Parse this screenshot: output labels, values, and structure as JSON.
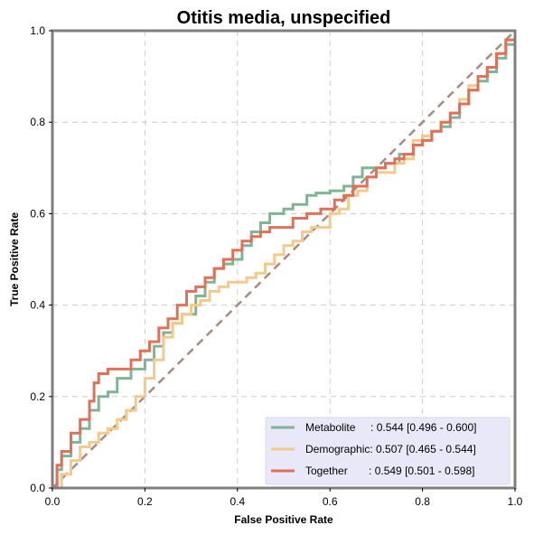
{
  "chart_data": {
    "type": "line",
    "title": "Otitis media, unspecified",
    "xlabel": "False Positive Rate",
    "ylabel": "True Positive Rate",
    "xlim": [
      0,
      1
    ],
    "ylim": [
      0,
      1
    ],
    "xticks": [
      "0.0",
      "0.2",
      "0.4",
      "0.6",
      "0.8",
      "1.0"
    ],
    "yticks": [
      "0.0",
      "0.2",
      "0.4",
      "0.6",
      "0.8",
      "1.0"
    ],
    "grid": true,
    "legend_position": "bottom-right",
    "colors": {
      "axes": "#7f7f7f",
      "grid": "#cccccc",
      "legend_bg": "#e8e8f8",
      "chance": "#a88a80"
    },
    "chance_line": {
      "x": [
        0,
        1
      ],
      "y": [
        0,
        1
      ]
    },
    "series": [
      {
        "name": "Metabolite",
        "legend": "Metabolite     : 0.544 [0.496 - 0.600]",
        "color": "#7fb595",
        "x": [
          0,
          0.01,
          0.02,
          0.04,
          0.06,
          0.08,
          0.1,
          0.12,
          0.14,
          0.17,
          0.2,
          0.22,
          0.24,
          0.26,
          0.28,
          0.31,
          0.33,
          0.35,
          0.37,
          0.39,
          0.41,
          0.43,
          0.45,
          0.47,
          0.5,
          0.52,
          0.55,
          0.57,
          0.6,
          0.63,
          0.65,
          0.67,
          0.69,
          0.72,
          0.75,
          0.78,
          0.8,
          0.82,
          0.84,
          0.86,
          0.88,
          0.9,
          0.92,
          0.94,
          0.96,
          0.98,
          1.0
        ],
        "y": [
          0,
          0.04,
          0.07,
          0.1,
          0.13,
          0.17,
          0.2,
          0.21,
          0.24,
          0.26,
          0.28,
          0.31,
          0.34,
          0.36,
          0.38,
          0.42,
          0.45,
          0.48,
          0.49,
          0.5,
          0.53,
          0.56,
          0.58,
          0.6,
          0.61,
          0.62,
          0.64,
          0.645,
          0.65,
          0.66,
          0.68,
          0.7,
          0.7,
          0.71,
          0.73,
          0.75,
          0.77,
          0.78,
          0.79,
          0.81,
          0.84,
          0.87,
          0.89,
          0.91,
          0.94,
          0.97,
          1.0
        ]
      },
      {
        "name": "Demographic",
        "legend": "Demographic: 0.507 [0.465 - 0.544]",
        "color": "#f2ca8a",
        "x": [
          0,
          0.02,
          0.04,
          0.06,
          0.08,
          0.1,
          0.12,
          0.14,
          0.16,
          0.18,
          0.2,
          0.22,
          0.24,
          0.26,
          0.28,
          0.3,
          0.32,
          0.34,
          0.36,
          0.38,
          0.4,
          0.42,
          0.44,
          0.46,
          0.48,
          0.5,
          0.52,
          0.54,
          0.56,
          0.58,
          0.6,
          0.62,
          0.64,
          0.66,
          0.68,
          0.7,
          0.72,
          0.74,
          0.76,
          0.78,
          0.8,
          0.82,
          0.84,
          0.86,
          0.88,
          0.9,
          0.92,
          0.94,
          0.96,
          0.98,
          1.0
        ],
        "y": [
          0,
          0.03,
          0.06,
          0.09,
          0.1,
          0.12,
          0.13,
          0.15,
          0.17,
          0.2,
          0.24,
          0.28,
          0.33,
          0.36,
          0.38,
          0.4,
          0.41,
          0.43,
          0.44,
          0.45,
          0.45,
          0.46,
          0.47,
          0.49,
          0.51,
          0.53,
          0.54,
          0.56,
          0.57,
          0.57,
          0.6,
          0.61,
          0.64,
          0.65,
          0.68,
          0.69,
          0.69,
          0.71,
          0.72,
          0.76,
          0.77,
          0.78,
          0.8,
          0.82,
          0.85,
          0.88,
          0.9,
          0.92,
          0.95,
          0.98,
          1.0
        ]
      },
      {
        "name": "Together",
        "legend": "Together       : 0.549 [0.501 - 0.598]",
        "color": "#e07058",
        "x": [
          0,
          0.01,
          0.02,
          0.04,
          0.06,
          0.08,
          0.09,
          0.1,
          0.12,
          0.14,
          0.17,
          0.19,
          0.21,
          0.23,
          0.25,
          0.27,
          0.29,
          0.31,
          0.33,
          0.35,
          0.37,
          0.39,
          0.41,
          0.43,
          0.45,
          0.47,
          0.49,
          0.52,
          0.55,
          0.58,
          0.61,
          0.63,
          0.65,
          0.68,
          0.7,
          0.72,
          0.74,
          0.76,
          0.78,
          0.8,
          0.82,
          0.84,
          0.86,
          0.88,
          0.9,
          0.92,
          0.94,
          0.96,
          0.98,
          1.0
        ],
        "y": [
          0,
          0.05,
          0.08,
          0.12,
          0.15,
          0.19,
          0.23,
          0.25,
          0.26,
          0.26,
          0.28,
          0.3,
          0.32,
          0.35,
          0.37,
          0.4,
          0.43,
          0.44,
          0.46,
          0.48,
          0.5,
          0.52,
          0.54,
          0.55,
          0.56,
          0.57,
          0.57,
          0.59,
          0.6,
          0.61,
          0.63,
          0.64,
          0.66,
          0.68,
          0.7,
          0.71,
          0.72,
          0.73,
          0.75,
          0.76,
          0.78,
          0.8,
          0.82,
          0.84,
          0.87,
          0.9,
          0.92,
          0.95,
          0.98,
          1.0
        ]
      }
    ]
  }
}
